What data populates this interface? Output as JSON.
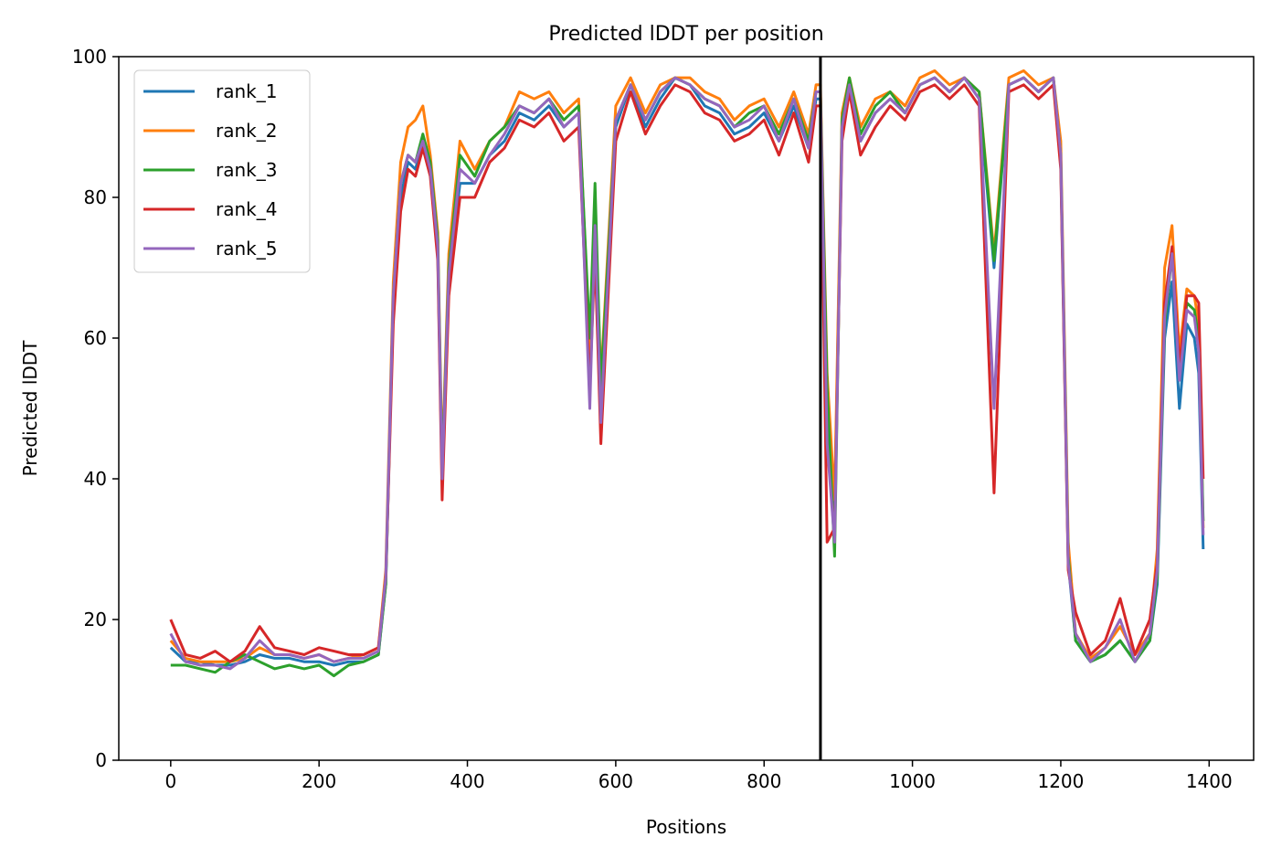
{
  "chart_data": {
    "type": "line",
    "title": "Predicted lDDT per position",
    "xlabel": "Positions",
    "ylabel": "Predicted lDDT",
    "xlim": [
      -70,
      1460
    ],
    "ylim": [
      0,
      100
    ],
    "xticks": [
      0,
      200,
      400,
      600,
      800,
      1000,
      1200,
      1400
    ],
    "yticks": [
      0,
      20,
      40,
      60,
      80,
      100
    ],
    "xtick_labels": [
      "0",
      "200",
      "400",
      "600",
      "800",
      "1000",
      "1200",
      "1400"
    ],
    "ytick_labels": [
      "0",
      "20",
      "40",
      "60",
      "80",
      "100"
    ],
    "grid": false,
    "legend_position": "top-left",
    "vline_x": 876,
    "vline_color": "#000000",
    "series": [
      {
        "name": "rank_1",
        "color": "#1f77b4",
        "x": [
          0,
          20,
          40,
          60,
          80,
          100,
          120,
          140,
          160,
          180,
          200,
          220,
          240,
          260,
          280,
          290,
          300,
          310,
          320,
          330,
          340,
          350,
          360,
          366,
          375,
          390,
          410,
          430,
          450,
          470,
          490,
          510,
          530,
          550,
          565,
          572,
          580,
          600,
          620,
          640,
          660,
          680,
          700,
          720,
          740,
          760,
          780,
          800,
          820,
          840,
          860,
          870,
          876,
          885,
          895,
          905,
          915,
          930,
          950,
          970,
          990,
          1010,
          1030,
          1050,
          1070,
          1090,
          1110,
          1130,
          1150,
          1170,
          1190,
          1200,
          1210,
          1220,
          1240,
          1260,
          1280,
          1300,
          1320,
          1330,
          1340,
          1350,
          1360,
          1370,
          1380,
          1386,
          1392
        ],
        "y": [
          16,
          14,
          14,
          13.5,
          13.5,
          14,
          15,
          14.5,
          14.5,
          14,
          14,
          13.5,
          14,
          14,
          15,
          25,
          65,
          80,
          85,
          84,
          88,
          84,
          72,
          40,
          68,
          82,
          82,
          86,
          88,
          92,
          91,
          93,
          90,
          92,
          55,
          75,
          52,
          90,
          96,
          90,
          94,
          97,
          96,
          93,
          92,
          89,
          90,
          92,
          88,
          93,
          87,
          94,
          94,
          52,
          35,
          90,
          96,
          88,
          92,
          94,
          92,
          96,
          97,
          95,
          97,
          94,
          70,
          96,
          97,
          95,
          97,
          85,
          28,
          17,
          14,
          15,
          17,
          14,
          17,
          25,
          60,
          68,
          50,
          62,
          60,
          55,
          30
        ]
      },
      {
        "name": "rank_2",
        "color": "#ff7f0e",
        "x": [
          0,
          20,
          40,
          60,
          80,
          100,
          120,
          140,
          160,
          180,
          200,
          220,
          240,
          260,
          280,
          290,
          300,
          310,
          320,
          330,
          340,
          350,
          360,
          366,
          375,
          390,
          410,
          430,
          450,
          470,
          490,
          510,
          530,
          550,
          565,
          572,
          580,
          600,
          620,
          640,
          660,
          680,
          700,
          720,
          740,
          760,
          780,
          800,
          820,
          840,
          860,
          870,
          876,
          885,
          895,
          905,
          915,
          930,
          950,
          970,
          990,
          1010,
          1030,
          1050,
          1070,
          1090,
          1110,
          1130,
          1150,
          1170,
          1190,
          1200,
          1210,
          1220,
          1240,
          1260,
          1280,
          1300,
          1320,
          1330,
          1340,
          1350,
          1360,
          1370,
          1380,
          1386,
          1392
        ],
        "y": [
          17,
          14.5,
          14,
          14,
          14,
          14.5,
          16,
          15,
          15,
          14.5,
          15,
          14,
          14.5,
          15,
          16,
          27,
          68,
          85,
          90,
          91,
          93,
          86,
          75,
          42,
          72,
          88,
          84,
          88,
          90,
          95,
          94,
          95,
          92,
          94,
          58,
          78,
          54,
          93,
          97,
          92,
          96,
          97,
          97,
          95,
          94,
          91,
          93,
          94,
          90,
          95,
          89,
          96,
          96,
          55,
          37,
          92,
          97,
          90,
          94,
          95,
          93,
          97,
          98,
          96,
          97,
          95,
          72,
          97,
          98,
          96,
          97,
          88,
          31,
          18,
          14.5,
          16,
          19,
          15,
          18,
          30,
          70,
          76,
          58,
          67,
          66,
          62,
          33
        ]
      },
      {
        "name": "rank_3",
        "color": "#2ca02c",
        "x": [
          0,
          20,
          40,
          60,
          80,
          100,
          120,
          140,
          160,
          180,
          200,
          220,
          240,
          260,
          280,
          290,
          300,
          310,
          320,
          330,
          340,
          350,
          360,
          366,
          375,
          390,
          410,
          430,
          450,
          470,
          490,
          510,
          530,
          550,
          565,
          572,
          580,
          600,
          620,
          640,
          660,
          680,
          700,
          720,
          740,
          760,
          780,
          800,
          820,
          840,
          860,
          870,
          876,
          885,
          895,
          905,
          915,
          930,
          950,
          970,
          990,
          1010,
          1030,
          1050,
          1070,
          1090,
          1110,
          1130,
          1150,
          1170,
          1190,
          1200,
          1210,
          1220,
          1240,
          1260,
          1280,
          1300,
          1320,
          1330,
          1340,
          1350,
          1360,
          1370,
          1380,
          1386,
          1392
        ],
        "y": [
          13.5,
          13.5,
          13,
          12.5,
          14,
          15,
          14,
          13,
          13.5,
          13,
          13.5,
          12,
          13.5,
          14,
          15,
          25,
          66,
          82,
          86,
          85,
          89,
          85,
          74,
          41,
          70,
          86,
          83,
          88,
          90,
          93,
          92,
          94,
          91,
          93,
          60,
          82,
          53,
          91,
          96,
          91,
          95,
          97,
          96,
          94,
          93,
          90,
          92,
          93,
          89,
          94,
          88,
          95,
          95,
          53,
          29,
          91,
          97,
          89,
          93,
          95,
          92,
          96,
          97,
          95,
          97,
          95,
          71,
          96,
          97,
          95,
          97,
          86,
          29,
          17,
          14,
          15,
          17,
          14,
          17,
          26,
          62,
          72,
          55,
          65,
          64,
          60,
          34
        ]
      },
      {
        "name": "rank_4",
        "color": "#d62728",
        "x": [
          0,
          20,
          40,
          60,
          80,
          100,
          120,
          140,
          160,
          180,
          200,
          220,
          240,
          260,
          280,
          290,
          300,
          310,
          320,
          330,
          340,
          350,
          360,
          366,
          375,
          390,
          410,
          430,
          450,
          470,
          490,
          510,
          530,
          550,
          565,
          572,
          580,
          600,
          620,
          640,
          660,
          680,
          700,
          720,
          740,
          760,
          780,
          800,
          820,
          840,
          860,
          870,
          876,
          885,
          895,
          905,
          915,
          930,
          950,
          970,
          990,
          1010,
          1030,
          1050,
          1070,
          1090,
          1110,
          1130,
          1150,
          1170,
          1190,
          1200,
          1210,
          1220,
          1240,
          1260,
          1280,
          1300,
          1320,
          1330,
          1340,
          1350,
          1360,
          1370,
          1380,
          1386,
          1392
        ],
        "y": [
          20,
          15,
          14.5,
          15.5,
          14,
          15.5,
          19,
          16,
          15.5,
          15,
          16,
          15.5,
          15,
          15,
          16,
          26,
          62,
          78,
          84,
          83,
          87,
          83,
          71,
          37,
          66,
          80,
          80,
          85,
          87,
          91,
          90,
          92,
          88,
          90,
          53,
          72,
          45,
          88,
          95,
          89,
          93,
          96,
          95,
          92,
          91,
          88,
          89,
          91,
          86,
          92,
          85,
          93,
          93,
          31,
          33,
          88,
          95,
          86,
          90,
          93,
          91,
          95,
          96,
          94,
          96,
          93,
          38,
          95,
          96,
          94,
          96,
          84,
          27,
          21,
          15,
          17,
          23,
          15,
          20,
          28,
          65,
          73,
          56,
          66,
          66,
          65,
          40
        ]
      },
      {
        "name": "rank_5",
        "color": "#9467bd",
        "x": [
          0,
          20,
          40,
          60,
          80,
          100,
          120,
          140,
          160,
          180,
          200,
          220,
          240,
          260,
          280,
          290,
          300,
          310,
          320,
          330,
          340,
          350,
          360,
          366,
          375,
          390,
          410,
          430,
          450,
          470,
          490,
          510,
          530,
          550,
          565,
          572,
          580,
          600,
          620,
          640,
          660,
          680,
          700,
          720,
          740,
          760,
          780,
          800,
          820,
          840,
          860,
          870,
          876,
          885,
          895,
          905,
          915,
          930,
          950,
          970,
          990,
          1010,
          1030,
          1050,
          1070,
          1090,
          1110,
          1130,
          1150,
          1170,
          1190,
          1200,
          1210,
          1220,
          1240,
          1260,
          1280,
          1300,
          1320,
          1330,
          1340,
          1350,
          1360,
          1370,
          1380,
          1386,
          1392
        ],
        "y": [
          18,
          14,
          13.5,
          13.5,
          13,
          14.5,
          17,
          15,
          15,
          14.5,
          15,
          14,
          14.5,
          14.5,
          15.5,
          26,
          66,
          82,
          86,
          85,
          88,
          84,
          73,
          40,
          69,
          84,
          82,
          86,
          89,
          93,
          92,
          94,
          90,
          92,
          50,
          76,
          48,
          91,
          96,
          91,
          95,
          97,
          96,
          94,
          93,
          90,
          91,
          93,
          88,
          94,
          87,
          95,
          95,
          45,
          31,
          90,
          96,
          88,
          92,
          94,
          92,
          96,
          97,
          95,
          97,
          94,
          50,
          96,
          97,
          95,
          97,
          86,
          28,
          18,
          14,
          16,
          20,
          14,
          18,
          27,
          63,
          72,
          54,
          64,
          63,
          58,
          32
        ]
      }
    ]
  }
}
